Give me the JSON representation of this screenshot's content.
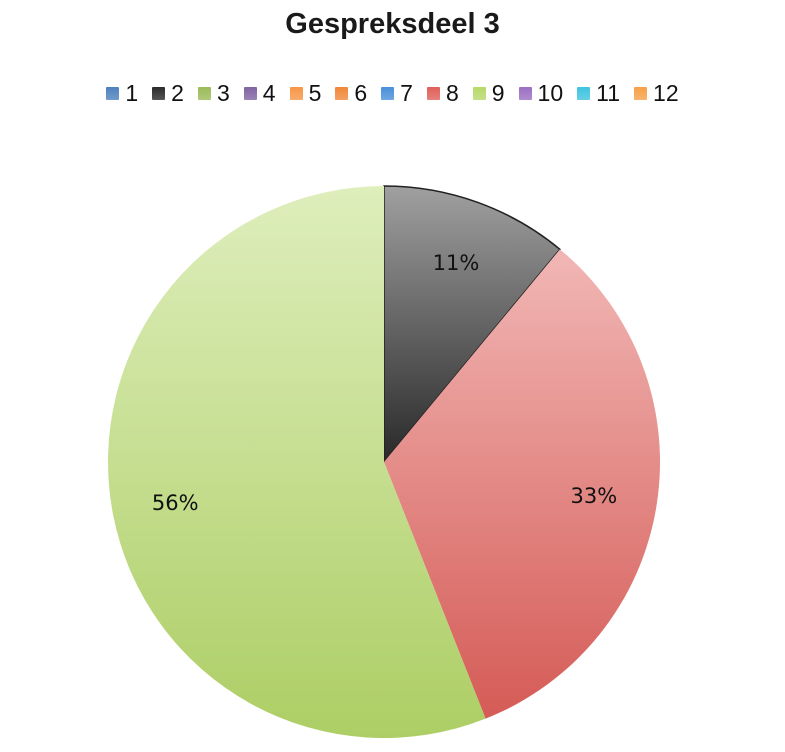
{
  "chart_data": {
    "type": "pie",
    "title": "Gespreksdeel 3",
    "legend_position": "top",
    "categories": [
      "1",
      "2",
      "3",
      "4",
      "5",
      "6",
      "7",
      "8",
      "9",
      "10",
      "11",
      "12"
    ],
    "values": [
      0,
      11,
      0,
      0,
      0,
      0,
      0,
      33,
      56,
      0,
      0,
      0
    ],
    "data_labels": [
      "",
      "11%",
      "",
      "",
      "",
      "",
      "",
      "33%",
      "56%",
      "",
      "",
      ""
    ],
    "colors": [
      "#4f81bd",
      "#2b2b2b",
      "#9bbb59",
      "#8064a2",
      "#f79646",
      "#f0883a",
      "#4a90d9",
      "#e0605a",
      "#b6d96a",
      "#9b6fc2",
      "#3fc4de",
      "#f7a04a"
    ]
  }
}
